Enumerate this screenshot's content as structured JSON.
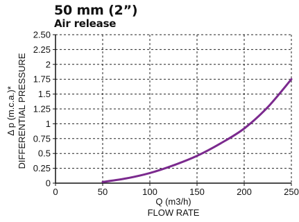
{
  "chart_data": {
    "type": "line",
    "title": "50 mm (2”)",
    "subtitle": "Air release",
    "xlabel": "Q (m3/h)",
    "xlabel2": "FLOW RATE",
    "ylabel": "Δ p (m.c.a.)*",
    "ylabel2": "DIFFERENTIAL PRESSURE",
    "xlim": [
      0,
      250
    ],
    "ylim": [
      0,
      2.5
    ],
    "xticks": [
      "0",
      "50",
      "100",
      "150",
      "200",
      "250"
    ],
    "yticks": [
      "0",
      "0.25",
      "0.5",
      "0.75",
      "1",
      "1.25",
      "1.5",
      "1.75",
      "2",
      "2.25",
      "2.50"
    ],
    "grid": true,
    "grid_style": "dashed",
    "series": [
      {
        "color": "#7b2a8e",
        "x": [
          50,
          75,
          100,
          125,
          150,
          175,
          200,
          225,
          250
        ],
        "y": [
          0.02,
          0.08,
          0.17,
          0.3,
          0.46,
          0.67,
          0.92,
          1.28,
          1.75
        ]
      }
    ]
  }
}
